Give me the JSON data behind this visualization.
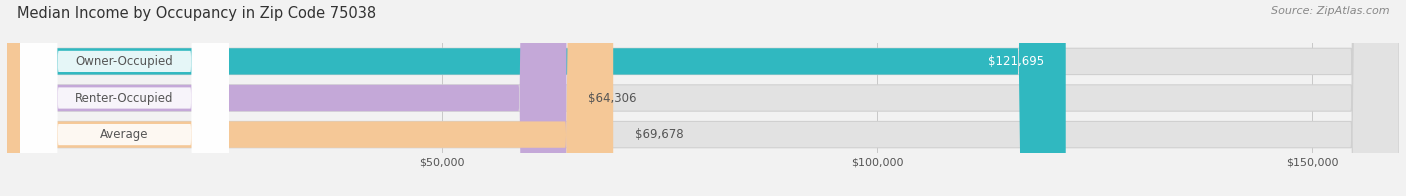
{
  "title": "Median Income by Occupancy in Zip Code 75038",
  "source": "Source: ZipAtlas.com",
  "categories": [
    "Owner-Occupied",
    "Renter-Occupied",
    "Average"
  ],
  "values": [
    121695,
    64306,
    69678
  ],
  "labels": [
    "$121,695",
    "$64,306",
    "$69,678"
  ],
  "label_inside": [
    true,
    false,
    false
  ],
  "bar_colors": [
    "#30b8c0",
    "#c4a8d8",
    "#f5c897"
  ],
  "background_color": "#f2f2f2",
  "bar_bg_color": "#e2e2e2",
  "bar_bg_edge_color": "#d0d0d0",
  "xlim_max": 160000,
  "xticks": [
    50000,
    100000,
    150000
  ],
  "xticklabels": [
    "$50,000",
    "$100,000",
    "$150,000"
  ],
  "title_fontsize": 10.5,
  "source_fontsize": 8,
  "label_fontsize": 8.5,
  "category_fontsize": 8.5,
  "tick_fontsize": 8,
  "grid_color": "#c8c8c8",
  "text_color_dark": "#555555",
  "text_color_light": "#ffffff"
}
